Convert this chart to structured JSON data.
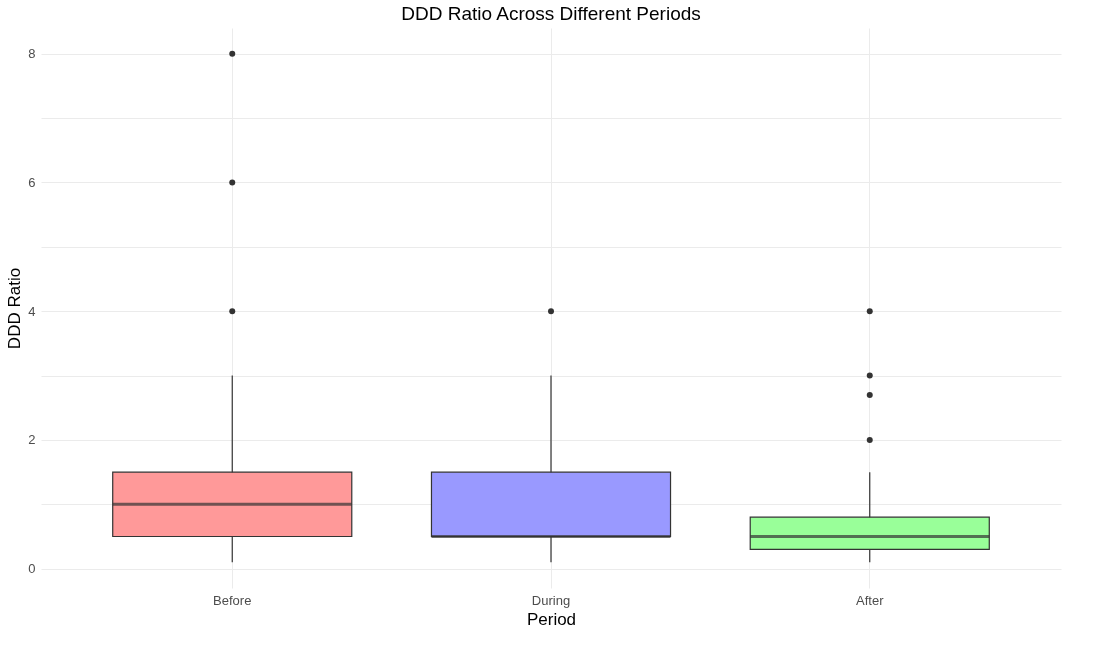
{
  "chart_data": {
    "type": "box",
    "title": "DDD Ratio Across Different Periods",
    "xlabel": "Period",
    "ylabel": "DDD Ratio",
    "categories": [
      "Before",
      "During",
      "After"
    ],
    "colors": [
      "#ff9999",
      "#9999ff",
      "#99ff99"
    ],
    "boxes": [
      {
        "low": 0.1,
        "q1": 0.5,
        "median": 1,
        "q3": 1.5,
        "high": 3,
        "outliers": [
          4,
          6,
          8
        ]
      },
      {
        "low": 0.1,
        "q1": 0.5,
        "median": 0.5,
        "q3": 1.5,
        "high": 3,
        "outliers": [
          4
        ]
      },
      {
        "low": 0.1,
        "q1": 0.3,
        "median": 0.5,
        "q3": 0.8,
        "high": 1.5,
        "outliers": [
          2,
          2.7,
          3,
          4
        ]
      }
    ],
    "ylim": [
      -0.3,
      8.4
    ],
    "yticks": [
      0,
      {
        "value": 1,
        "label": null
      },
      2,
      {
        "value": 3,
        "label": null
      },
      4,
      {
        "value": 5,
        "label": null
      },
      6,
      {
        "value": 7,
        "label": null
      },
      8
    ],
    "grid": true
  }
}
